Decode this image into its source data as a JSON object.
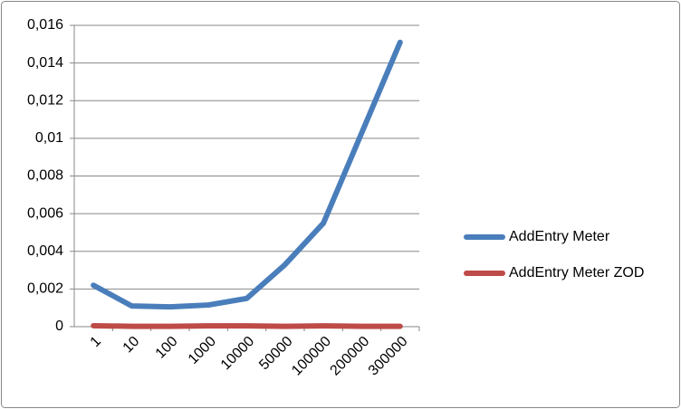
{
  "chart_data": {
    "type": "line",
    "categories": [
      "1",
      "10",
      "100",
      "1000",
      "10000",
      "50000",
      "100000",
      "200000",
      "300000"
    ],
    "series": [
      {
        "name": "AddEntry Meter",
        "color": "#4a7ebb",
        "values": [
          0.0022,
          0.0011,
          0.00105,
          0.00115,
          0.0015,
          0.0033,
          0.0055,
          0.0103,
          0.0151
        ]
      },
      {
        "name": "AddEntry Meter ZOD",
        "color": "#be4b48",
        "values": [
          5e-05,
          2e-05,
          2e-05,
          4e-05,
          4e-05,
          2e-05,
          4e-05,
          2e-05,
          2e-05
        ]
      }
    ],
    "ylim": [
      0,
      0.016
    ],
    "yticks": [
      0,
      {
        "value": 0.002,
        "label": "0,002"
      },
      {
        "value": 0.004,
        "label": "0,004"
      },
      {
        "value": 0.006,
        "label": "0,006"
      },
      {
        "value": 0.008,
        "label": "0,008"
      },
      {
        "value": 0.01,
        "label": "0,01"
      },
      {
        "value": 0.012,
        "label": "0,012"
      },
      {
        "value": 0.014,
        "label": "0,014"
      },
      {
        "value": 0.016,
        "label": "0,016"
      }
    ],
    "grid": true,
    "legend": "right"
  }
}
